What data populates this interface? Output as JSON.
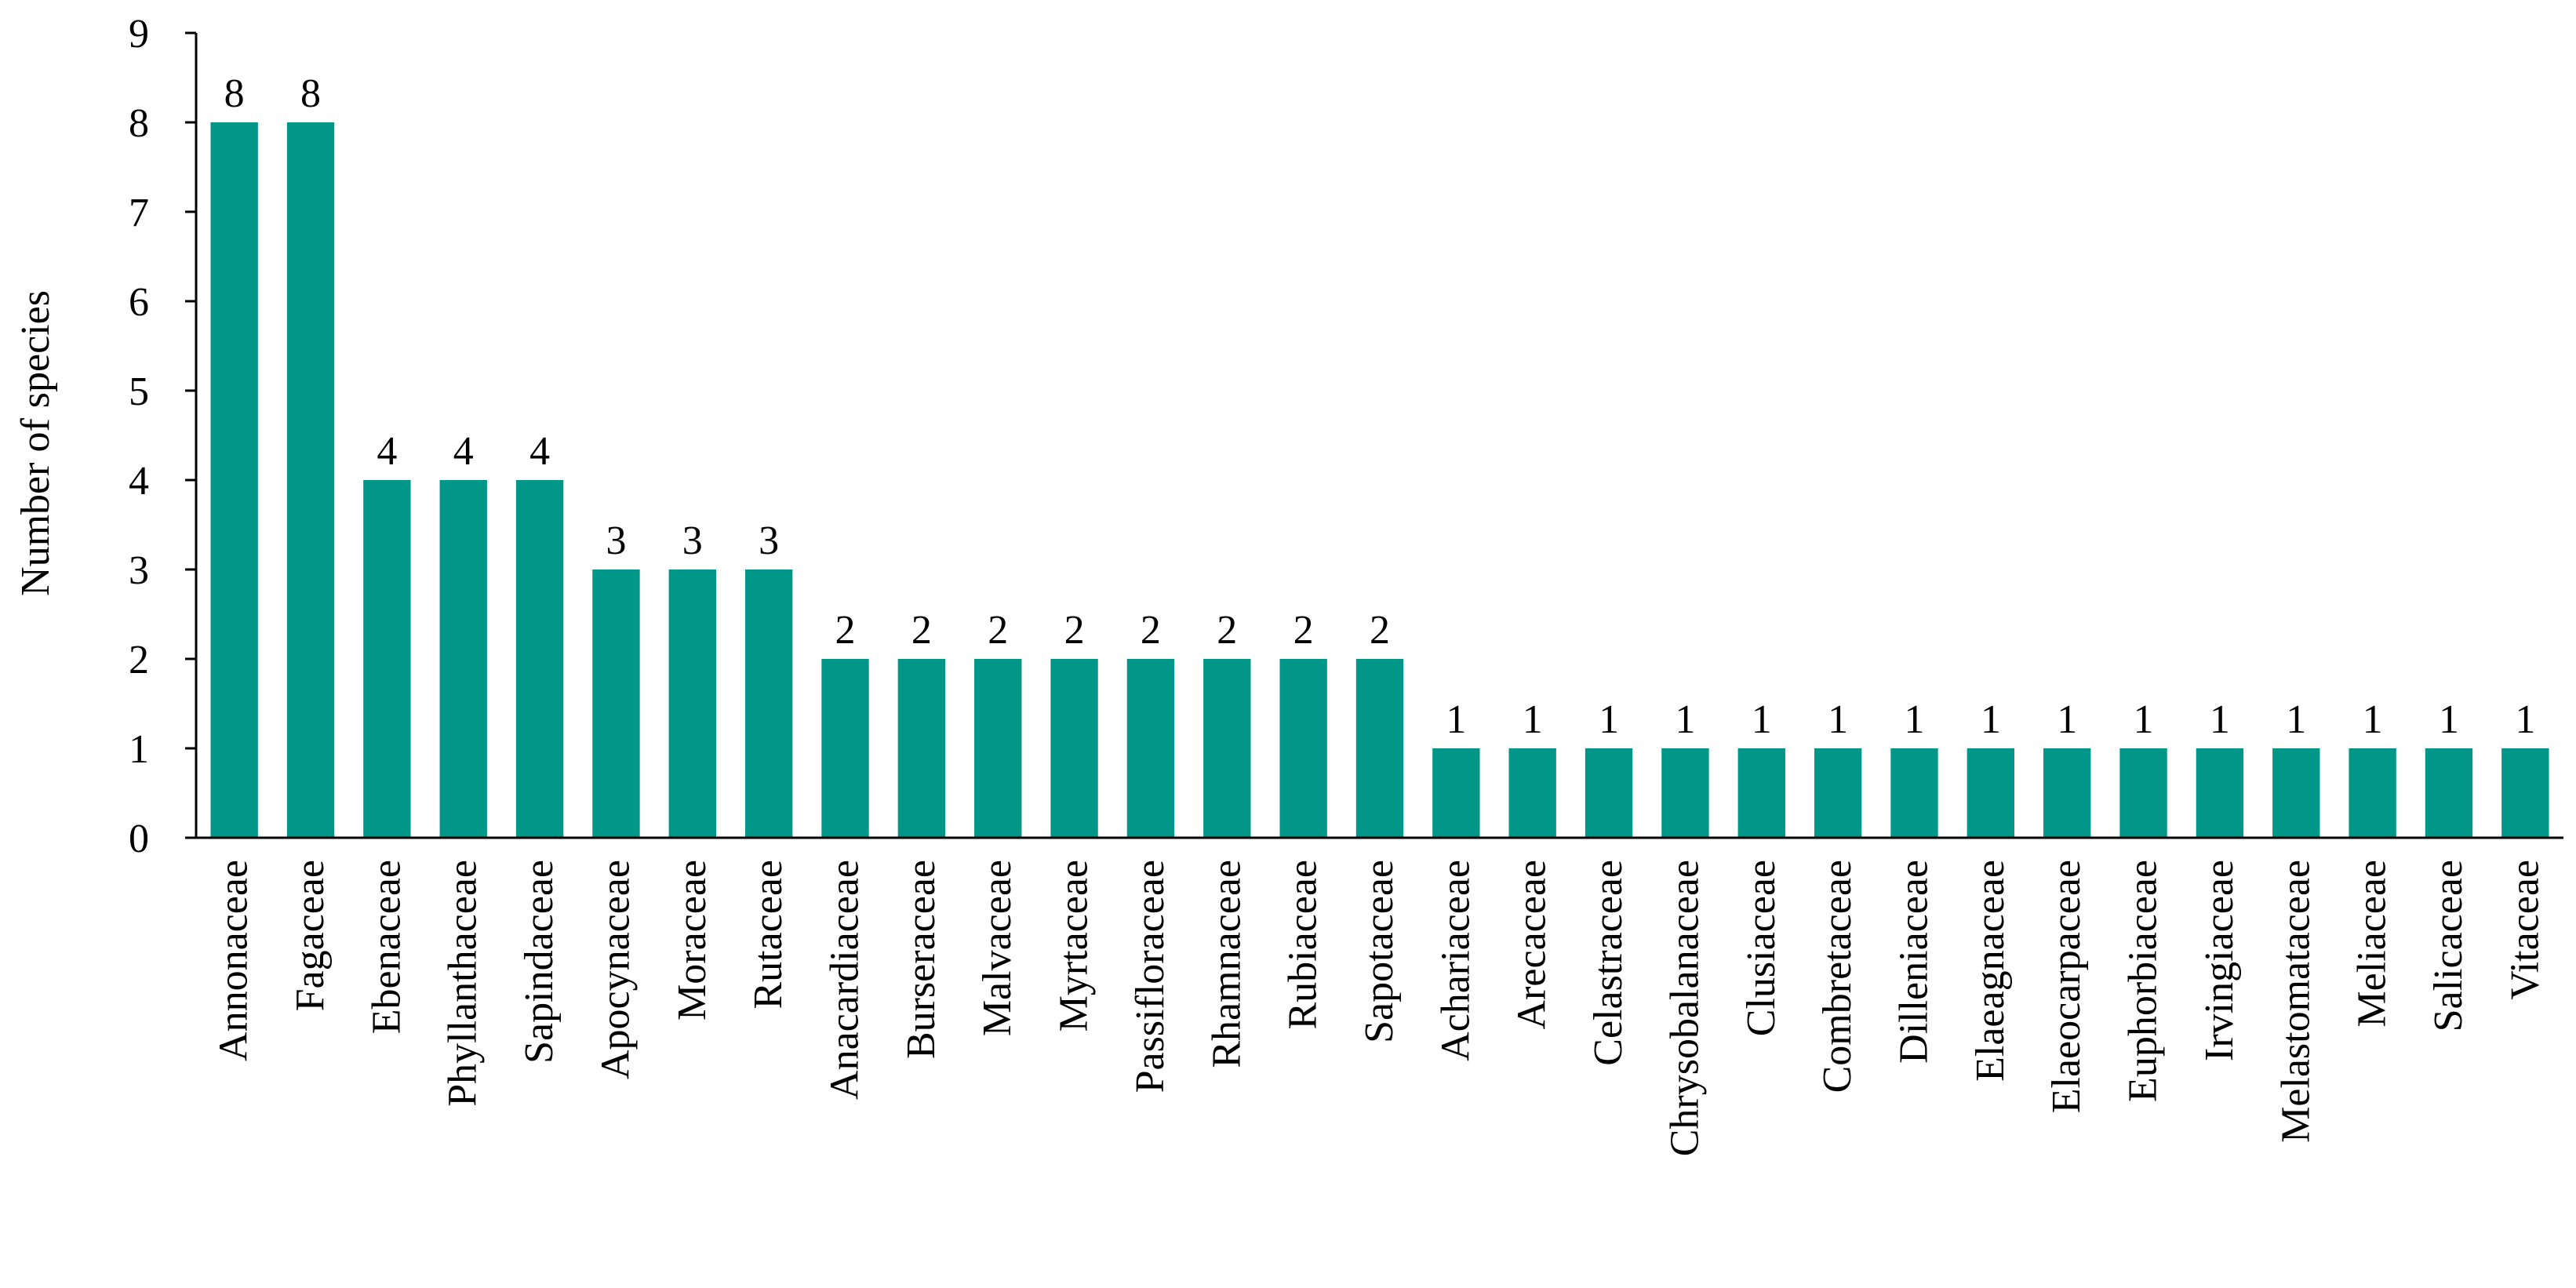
{
  "chart_data": {
    "type": "bar",
    "title": "",
    "xlabel": "",
    "ylabel": "Number of species",
    "ylim": [
      0,
      9
    ],
    "yticks": [
      0,
      1,
      2,
      3,
      4,
      5,
      6,
      7,
      8,
      9
    ],
    "grid": false,
    "legend": "none",
    "bar_color": "#009688",
    "categories": [
      "Annonaceae",
      "Fagaceae",
      "Ebenaceae",
      "Phyllanthaceae",
      "Sapindaceae",
      "Apocynaceae",
      "Moraceae",
      "Rutaceae",
      "Anacardiaceae",
      "Burseraceae",
      "Malvaceae",
      "Myrtaceae",
      "Passifloraceae",
      "Rhamnaceae",
      "Rubiaceae",
      "Sapotaceae",
      "Achariaceae",
      "Arecaceae",
      "Celastraceae",
      "Chrysobalanaceae",
      "Clusiaceae",
      "Combretaceae",
      "Dilleniaceae",
      "Elaeagnaceae",
      "Elaeocarpaceae",
      "Euphorbiaceae",
      "Irvingiaceae",
      "Melastomataceae",
      "Meliaceae",
      "Salicaceae",
      "Vitaceae"
    ],
    "values": [
      8,
      8,
      4,
      4,
      4,
      3,
      3,
      3,
      2,
      2,
      2,
      2,
      2,
      2,
      2,
      2,
      1,
      1,
      1,
      1,
      1,
      1,
      1,
      1,
      1,
      1,
      1,
      1,
      1,
      1,
      1
    ],
    "data_labels": true
  }
}
